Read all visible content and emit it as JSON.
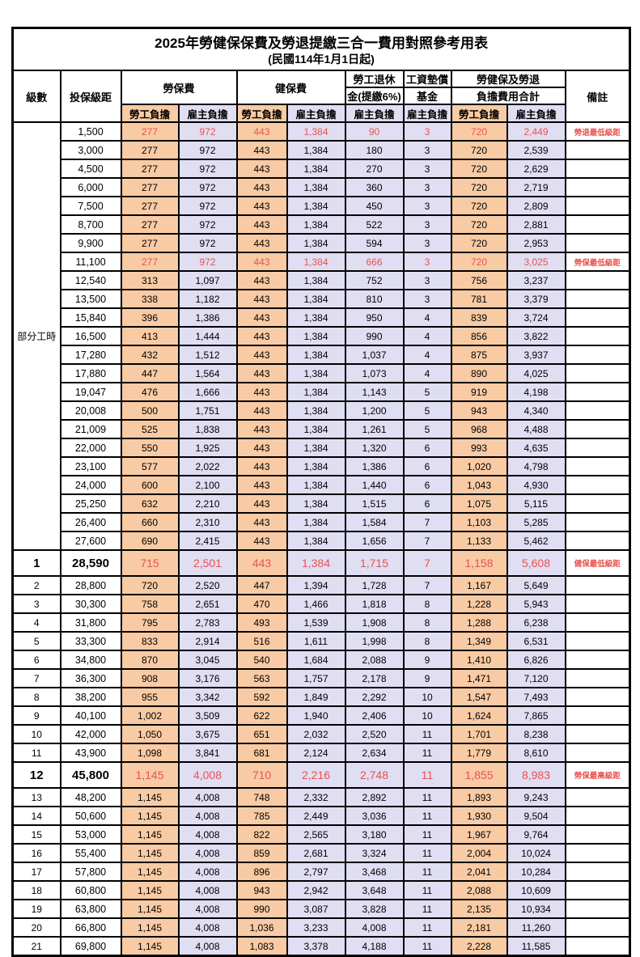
{
  "page": {
    "title": "2025年勞健保保費及勞退提繳三合一費用對照參考用表",
    "subtitle": "(民國114年1月1日起)"
  },
  "colors": {
    "employee_column_bg": "#F8CBA4",
    "employer_column_bg": "#E0DEF2",
    "highlight_text": "#E85250",
    "border": "#000000"
  },
  "table": {
    "headers": {
      "level": "級數",
      "salary": "投保級距",
      "labor_fee": "勞保費",
      "health_fee": "健保費",
      "pension_line1": "勞工退休",
      "pension_line2": "金(提繳6%)",
      "fund_line1": "工資墊償",
      "fund_line2": "基金",
      "total_line1": "勞健保及勞退",
      "total_line2": "負擔費用合計",
      "note": "備註",
      "employee": "勞工負擔",
      "employer": "雇主負擔"
    },
    "part_time_label": "部分工時",
    "part_time_rowspan": 23,
    "rows": [
      {
        "level": "",
        "salary": "1,500",
        "values": [
          "277",
          "972",
          "443",
          "1,384",
          "90",
          "3",
          "720",
          "2,449"
        ],
        "note": "勞退最低級距",
        "red": true
      },
      {
        "level": "",
        "salary": "3,000",
        "values": [
          "277",
          "972",
          "443",
          "1,384",
          "180",
          "3",
          "720",
          "2,539"
        ],
        "note": ""
      },
      {
        "level": "",
        "salary": "4,500",
        "values": [
          "277",
          "972",
          "443",
          "1,384",
          "270",
          "3",
          "720",
          "2,629"
        ],
        "note": ""
      },
      {
        "level": "",
        "salary": "6,000",
        "values": [
          "277",
          "972",
          "443",
          "1,384",
          "360",
          "3",
          "720",
          "2,719"
        ],
        "note": ""
      },
      {
        "level": "",
        "salary": "7,500",
        "values": [
          "277",
          "972",
          "443",
          "1,384",
          "450",
          "3",
          "720",
          "2,809"
        ],
        "note": ""
      },
      {
        "level": "",
        "salary": "8,700",
        "values": [
          "277",
          "972",
          "443",
          "1,384",
          "522",
          "3",
          "720",
          "2,881"
        ],
        "note": ""
      },
      {
        "level": "",
        "salary": "9,900",
        "values": [
          "277",
          "972",
          "443",
          "1,384",
          "594",
          "3",
          "720",
          "2,953"
        ],
        "note": ""
      },
      {
        "level": "",
        "salary": "11,100",
        "values": [
          "277",
          "972",
          "443",
          "1,384",
          "666",
          "3",
          "720",
          "3,025"
        ],
        "note": "勞保最低級距",
        "red": true
      },
      {
        "level": "",
        "salary": "12,540",
        "values": [
          "313",
          "1,097",
          "443",
          "1,384",
          "752",
          "3",
          "756",
          "3,237"
        ],
        "note": ""
      },
      {
        "level": "",
        "salary": "13,500",
        "values": [
          "338",
          "1,182",
          "443",
          "1,384",
          "810",
          "3",
          "781",
          "3,379"
        ],
        "note": ""
      },
      {
        "level": "",
        "salary": "15,840",
        "values": [
          "396",
          "1,386",
          "443",
          "1,384",
          "950",
          "4",
          "839",
          "3,724"
        ],
        "note": ""
      },
      {
        "level": "",
        "salary": "16,500",
        "values": [
          "413",
          "1,444",
          "443",
          "1,384",
          "990",
          "4",
          "856",
          "3,822"
        ],
        "note": ""
      },
      {
        "level": "",
        "salary": "17,280",
        "values": [
          "432",
          "1,512",
          "443",
          "1,384",
          "1,037",
          "4",
          "875",
          "3,937"
        ],
        "note": ""
      },
      {
        "level": "",
        "salary": "17,880",
        "values": [
          "447",
          "1,564",
          "443",
          "1,384",
          "1,073",
          "4",
          "890",
          "4,025"
        ],
        "note": ""
      },
      {
        "level": "",
        "salary": "19,047",
        "values": [
          "476",
          "1,666",
          "443",
          "1,384",
          "1,143",
          "5",
          "919",
          "4,198"
        ],
        "note": ""
      },
      {
        "level": "",
        "salary": "20,008",
        "values": [
          "500",
          "1,751",
          "443",
          "1,384",
          "1,200",
          "5",
          "943",
          "4,340"
        ],
        "note": ""
      },
      {
        "level": "",
        "salary": "21,009",
        "values": [
          "525",
          "1,838",
          "443",
          "1,384",
          "1,261",
          "5",
          "968",
          "4,488"
        ],
        "note": ""
      },
      {
        "level": "",
        "salary": "22,000",
        "values": [
          "550",
          "1,925",
          "443",
          "1,384",
          "1,320",
          "6",
          "993",
          "4,635"
        ],
        "note": ""
      },
      {
        "level": "",
        "salary": "23,100",
        "values": [
          "577",
          "2,022",
          "443",
          "1,384",
          "1,386",
          "6",
          "1,020",
          "4,798"
        ],
        "note": ""
      },
      {
        "level": "",
        "salary": "24,000",
        "values": [
          "600",
          "2,100",
          "443",
          "1,384",
          "1,440",
          "6",
          "1,043",
          "4,930"
        ],
        "note": ""
      },
      {
        "level": "",
        "salary": "25,250",
        "values": [
          "632",
          "2,210",
          "443",
          "1,384",
          "1,515",
          "6",
          "1,075",
          "5,115"
        ],
        "note": ""
      },
      {
        "level": "",
        "salary": "26,400",
        "values": [
          "660",
          "2,310",
          "443",
          "1,384",
          "1,584",
          "7",
          "1,103",
          "5,285"
        ],
        "note": ""
      },
      {
        "level": "",
        "salary": "27,600",
        "values": [
          "690",
          "2,415",
          "443",
          "1,384",
          "1,656",
          "7",
          "1,133",
          "5,462"
        ],
        "note": ""
      },
      {
        "level": "1",
        "salary": "28,590",
        "values": [
          "715",
          "2,501",
          "443",
          "1,384",
          "1,715",
          "7",
          "1,158",
          "5,608"
        ],
        "note": "健保最低級距",
        "red": true,
        "big": true
      },
      {
        "level": "2",
        "salary": "28,800",
        "values": [
          "720",
          "2,520",
          "447",
          "1,394",
          "1,728",
          "7",
          "1,167",
          "5,649"
        ],
        "note": ""
      },
      {
        "level": "3",
        "salary": "30,300",
        "values": [
          "758",
          "2,651",
          "470",
          "1,466",
          "1,818",
          "8",
          "1,228",
          "5,943"
        ],
        "note": ""
      },
      {
        "level": "4",
        "salary": "31,800",
        "values": [
          "795",
          "2,783",
          "493",
          "1,539",
          "1,908",
          "8",
          "1,288",
          "6,238"
        ],
        "note": ""
      },
      {
        "level": "5",
        "salary": "33,300",
        "values": [
          "833",
          "2,914",
          "516",
          "1,611",
          "1,998",
          "8",
          "1,349",
          "6,531"
        ],
        "note": ""
      },
      {
        "level": "6",
        "salary": "34,800",
        "values": [
          "870",
          "3,045",
          "540",
          "1,684",
          "2,088",
          "9",
          "1,410",
          "6,826"
        ],
        "note": ""
      },
      {
        "level": "7",
        "salary": "36,300",
        "values": [
          "908",
          "3,176",
          "563",
          "1,757",
          "2,178",
          "9",
          "1,471",
          "7,120"
        ],
        "note": ""
      },
      {
        "level": "8",
        "salary": "38,200",
        "values": [
          "955",
          "3,342",
          "592",
          "1,849",
          "2,292",
          "10",
          "1,547",
          "7,493"
        ],
        "note": ""
      },
      {
        "level": "9",
        "salary": "40,100",
        "values": [
          "1,002",
          "3,509",
          "622",
          "1,940",
          "2,406",
          "10",
          "1,624",
          "7,865"
        ],
        "note": ""
      },
      {
        "level": "10",
        "salary": "42,000",
        "values": [
          "1,050",
          "3,675",
          "651",
          "2,032",
          "2,520",
          "11",
          "1,701",
          "8,238"
        ],
        "note": ""
      },
      {
        "level": "11",
        "salary": "43,900",
        "values": [
          "1,098",
          "3,841",
          "681",
          "2,124",
          "2,634",
          "11",
          "1,779",
          "8,610"
        ],
        "note": ""
      },
      {
        "level": "12",
        "salary": "45,800",
        "values": [
          "1,145",
          "4,008",
          "710",
          "2,216",
          "2,748",
          "11",
          "1,855",
          "8,983"
        ],
        "note": "勞保最高級距",
        "red": true,
        "big": true
      },
      {
        "level": "13",
        "salary": "48,200",
        "values": [
          "1,145",
          "4,008",
          "748",
          "2,332",
          "2,892",
          "11",
          "1,893",
          "9,243"
        ],
        "note": ""
      },
      {
        "level": "14",
        "salary": "50,600",
        "values": [
          "1,145",
          "4,008",
          "785",
          "2,449",
          "3,036",
          "11",
          "1,930",
          "9,504"
        ],
        "note": ""
      },
      {
        "level": "15",
        "salary": "53,000",
        "values": [
          "1,145",
          "4,008",
          "822",
          "2,565",
          "3,180",
          "11",
          "1,967",
          "9,764"
        ],
        "note": ""
      },
      {
        "level": "16",
        "salary": "55,400",
        "values": [
          "1,145",
          "4,008",
          "859",
          "2,681",
          "3,324",
          "11",
          "2,004",
          "10,024"
        ],
        "note": ""
      },
      {
        "level": "17",
        "salary": "57,800",
        "values": [
          "1,145",
          "4,008",
          "896",
          "2,797",
          "3,468",
          "11",
          "2,041",
          "10,284"
        ],
        "note": ""
      },
      {
        "level": "18",
        "salary": "60,800",
        "values": [
          "1,145",
          "4,008",
          "943",
          "2,942",
          "3,648",
          "11",
          "2,088",
          "10,609"
        ],
        "note": ""
      },
      {
        "level": "19",
        "salary": "63,800",
        "values": [
          "1,145",
          "4,008",
          "990",
          "3,087",
          "3,828",
          "11",
          "2,135",
          "10,934"
        ],
        "note": ""
      },
      {
        "level": "20",
        "salary": "66,800",
        "values": [
          "1,145",
          "4,008",
          "1,036",
          "3,233",
          "4,008",
          "11",
          "2,181",
          "11,260"
        ],
        "note": ""
      },
      {
        "level": "21",
        "salary": "69,800",
        "values": [
          "1,145",
          "4,008",
          "1,083",
          "3,378",
          "4,188",
          "11",
          "2,228",
          "11,585"
        ],
        "note": ""
      }
    ]
  }
}
